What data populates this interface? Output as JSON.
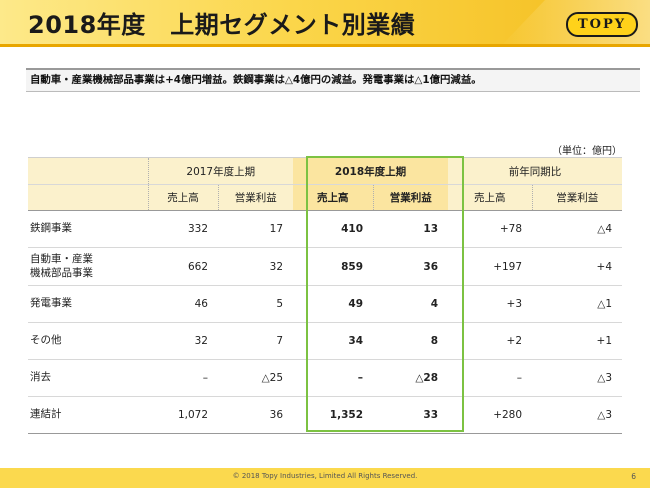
{
  "header": {
    "title": "2018年度　上期セグメント別業績",
    "logo_text": "TOPY"
  },
  "summary": "自動車・産業機械部品事業は+4億円増益。鉄鋼事業は△4億円の減益。発電事業は△1億円減益。",
  "unit": "（単位：億円）",
  "table": {
    "groups": [
      "2017年度上期",
      "2018年度上期",
      "前年同期比"
    ],
    "subheaders": [
      "売上高",
      "営業利益",
      "売上高",
      "営業利益",
      "売上高",
      "営業利益"
    ],
    "rows": [
      {
        "label": "鉄鋼事業",
        "values": [
          "332",
          "17",
          "410",
          "13",
          "+78",
          "△4"
        ]
      },
      {
        "label": "自動車・産業\n機械部品事業",
        "values": [
          "662",
          "32",
          "859",
          "36",
          "+197",
          "+4"
        ]
      },
      {
        "label": "発電事業",
        "values": [
          "46",
          "5",
          "49",
          "4",
          "+3",
          "△1"
        ]
      },
      {
        "label": "その他",
        "values": [
          "32",
          "7",
          "34",
          "8",
          "+2",
          "+1"
        ]
      },
      {
        "label": "消去",
        "values": [
          "–",
          "△25",
          "–",
          "△28",
          "–",
          "△3"
        ]
      },
      {
        "label": "連結計",
        "values": [
          "1,072",
          "36",
          "1,352",
          "33",
          "+280",
          "△3"
        ]
      }
    ]
  },
  "footer": {
    "copyright": "© 2018 Topy Industries, Limited All Rights Reserved.",
    "page": "6"
  },
  "colors": {
    "accent": "#fbd64a",
    "highlight_border": "#7cc242",
    "header_fill": "#fbf1cc"
  }
}
